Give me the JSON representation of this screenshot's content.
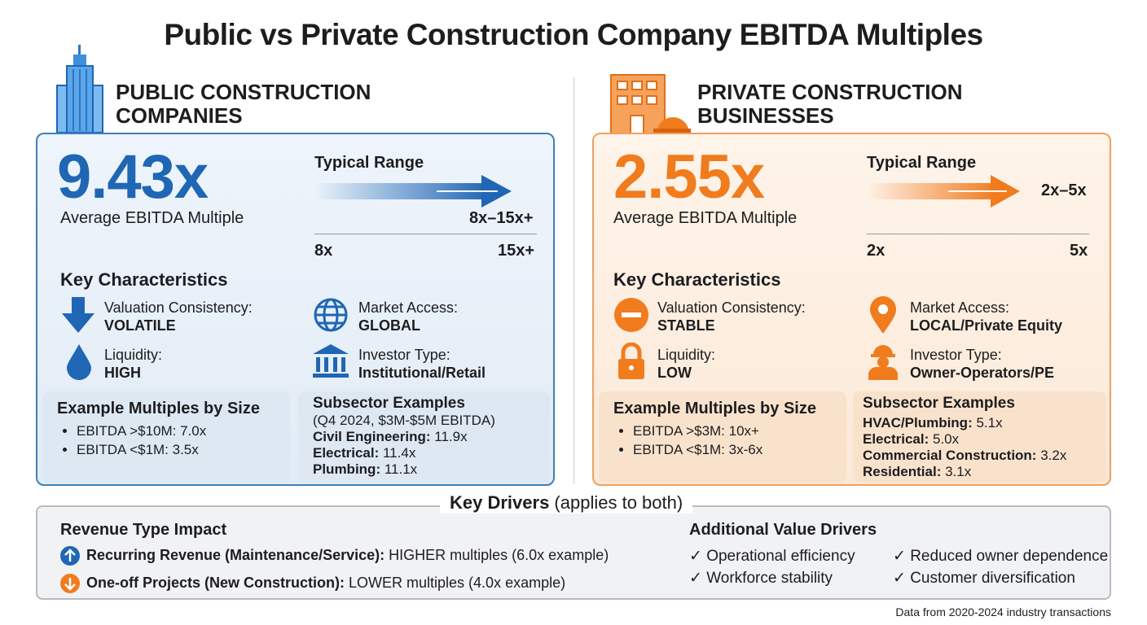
{
  "title": "Public vs Private Construction Company EBITDA Multiples",
  "colors": {
    "public": "#1f66b5",
    "private": "#f07c1e"
  },
  "public": {
    "heading": [
      "PUBLIC CONSTRUCTION",
      "COMPANIES"
    ],
    "icon": "skyscraper-icon",
    "average": "9.43x",
    "average_label": "Average EBITDA Multiple",
    "range_title": "Typical Range",
    "range_value": "8x–15x+",
    "range_min": "8x",
    "range_max": "15x+",
    "key_title": "Key Characteristics",
    "characteristics": [
      {
        "icon": "arrow-down-icon",
        "label": "Valuation Consistency:",
        "value": "VOLATILE"
      },
      {
        "icon": "globe-icon",
        "label": "Market Access:",
        "value": "GLOBAL"
      },
      {
        "icon": "water-drop-icon",
        "label": "Liquidity:",
        "value": "HIGH"
      },
      {
        "icon": "bank-icon",
        "label": "Investor Type:",
        "value": "Institutional/Retail"
      }
    ],
    "size_title": "Example Multiples by Size",
    "size_items": [
      "EBITDA >$10M: 7.0x",
      "EBITDA <$1M: 3.5x"
    ],
    "subsector_title": "Subsector Examples",
    "subsector_note": "(Q4 2024, $3M-$5M EBITDA)",
    "subsectors": [
      {
        "name": "Civil Engineering:",
        "value": " 11.9x"
      },
      {
        "name": "Electrical:",
        "value": " 11.4x"
      },
      {
        "name": "Plumbing:",
        "value": " 11.1x"
      }
    ]
  },
  "private": {
    "heading": [
      "PRIVATE CONSTRUCTION",
      "BUSINESSES"
    ],
    "icon": "small-building-hardhat-icon",
    "average": "2.55x",
    "average_label": "Average EBITDA Multiple",
    "range_title": "Typical Range",
    "range_value": "2x–5x",
    "range_min": "2x",
    "range_max": "5x",
    "key_title": "Key Characteristics",
    "characteristics": [
      {
        "icon": "minus-circle-icon",
        "label": "Valuation Consistency:",
        "value": "STABLE"
      },
      {
        "icon": "map-pin-icon",
        "label": "Market Access:",
        "value": "LOCAL/Private Equity"
      },
      {
        "icon": "lock-icon",
        "label": "Liquidity:",
        "value": "LOW"
      },
      {
        "icon": "worker-icon",
        "label": "Investor Type:",
        "value": "Owner-Operators/PE"
      }
    ],
    "size_title": "Example Multiples by Size",
    "size_items": [
      "EBITDA >$3M: 10x+",
      "EBITDA <$1M: 3x-6x"
    ],
    "subsector_title": "Subsector Examples",
    "subsectors": [
      {
        "name": "HVAC/Plumbing:",
        "value": " 5.1x"
      },
      {
        "name": "Electrical:",
        "value": " 5.0x"
      },
      {
        "name": "Commercial Construction:",
        "value": " 3.2x"
      },
      {
        "name": "Residential:",
        "value": " 3.1x"
      }
    ]
  },
  "drivers": {
    "title_bold": "Key Drivers",
    "title_rest": " (applies to both)",
    "revenue_title": "Revenue Type Impact",
    "revenue": [
      {
        "icon": "arrow-up-circle-icon",
        "bold": "Recurring Revenue (Maintenance/Service):",
        "rest": " HIGHER multiples (6.0x example)"
      },
      {
        "icon": "arrow-down-circle-icon",
        "bold": "One-off Projects (New Construction):",
        "rest": " LOWER multiples (4.0x example)"
      }
    ],
    "additional_title": "Additional Value Drivers",
    "additional": [
      "Operational efficiency",
      "Reduced owner dependence",
      "Workforce stability",
      "Customer diversification"
    ]
  },
  "footnote": "Data from 2020-2024 industry transactions"
}
